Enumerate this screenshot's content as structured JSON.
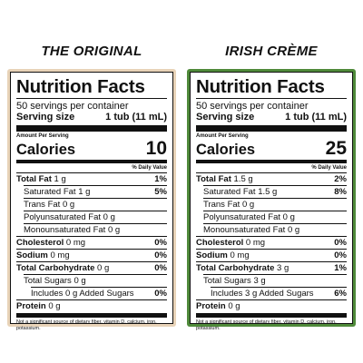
{
  "colors": {
    "left_border": "#e8d3b8",
    "right_border": "#4f8a3a"
  },
  "panels": [
    {
      "heading": "THE ORIGINAL",
      "title": "Nutrition Facts",
      "servings": "50 servings per container",
      "serving_size_label": "Serving size",
      "serving_size_value": "1 tub (11 mL)",
      "amount_per": "Amount Per Serving",
      "calories_label": "Calories",
      "calories_value": "10",
      "dv_header": "% Daily Value",
      "nutrients": [
        {
          "name": "Total Fat",
          "amount": "1 g",
          "pct": "1%",
          "bold": true,
          "indent": 0
        },
        {
          "name": "Saturated Fat",
          "amount": "1 g",
          "pct": "5%",
          "bold": false,
          "indent": 1
        },
        {
          "name": "Trans Fat",
          "amount": "0 g",
          "pct": "",
          "bold": false,
          "indent": 1
        },
        {
          "name": "Polyunsaturated Fat",
          "amount": "0 g",
          "pct": "",
          "bold": false,
          "indent": 1
        },
        {
          "name": "Monounsaturated Fat",
          "amount": "0 g",
          "pct": "",
          "bold": false,
          "indent": 1
        },
        {
          "name": "Cholesterol",
          "amount": "0 mg",
          "pct": "0%",
          "bold": true,
          "indent": 0
        },
        {
          "name": "Sodium",
          "amount": "0 mg",
          "pct": "0%",
          "bold": true,
          "indent": 0
        },
        {
          "name": "Total Carbohydrate",
          "amount": "0 g",
          "pct": "0%",
          "bold": true,
          "indent": 0
        },
        {
          "name": "Total Sugars",
          "amount": "0 g",
          "pct": "",
          "bold": false,
          "indent": 1
        },
        {
          "name": "Includes 0 g Added Sugars",
          "amount": "",
          "pct": "0%",
          "bold": false,
          "indent": 2
        },
        {
          "name": "Protein",
          "amount": "0 g",
          "pct": "",
          "bold": true,
          "indent": 0
        }
      ],
      "footnote": "Not a significant source of dietary fiber, vitamin D, calcium, iron, potassium."
    },
    {
      "heading": "IRISH CRÈME",
      "title": "Nutrition Facts",
      "servings": "50 servings per container",
      "serving_size_label": "Serving size",
      "serving_size_value": "1 tub (11 mL)",
      "amount_per": "Amount Per Serving",
      "calories_label": "Calories",
      "calories_value": "25",
      "dv_header": "% Daily Value",
      "nutrients": [
        {
          "name": "Total Fat",
          "amount": "1.5 g",
          "pct": "2%",
          "bold": true,
          "indent": 0
        },
        {
          "name": "Saturated Fat",
          "amount": "1.5 g",
          "pct": "8%",
          "bold": false,
          "indent": 1
        },
        {
          "name": "Trans Fat",
          "amount": "0 g",
          "pct": "",
          "bold": false,
          "indent": 1
        },
        {
          "name": "Polyunsaturated Fat",
          "amount": "0 g",
          "pct": "",
          "bold": false,
          "indent": 1
        },
        {
          "name": "Monounsaturated Fat",
          "amount": "0 g",
          "pct": "",
          "bold": false,
          "indent": 1
        },
        {
          "name": "Cholesterol",
          "amount": "0 mg",
          "pct": "0%",
          "bold": true,
          "indent": 0
        },
        {
          "name": "Sodium",
          "amount": "0 mg",
          "pct": "0%",
          "bold": true,
          "indent": 0
        },
        {
          "name": "Total Carbohydrate",
          "amount": "3 g",
          "pct": "1%",
          "bold": true,
          "indent": 0
        },
        {
          "name": "Total Sugars",
          "amount": "3 g",
          "pct": "",
          "bold": false,
          "indent": 1
        },
        {
          "name": "Includes 3 g Added Sugars",
          "amount": "",
          "pct": "6%",
          "bold": false,
          "indent": 2
        },
        {
          "name": "Protein",
          "amount": "0 g",
          "pct": "",
          "bold": true,
          "indent": 0
        }
      ],
      "footnote": "Not a significant source of dietary fiber, vitamin D, calcium, iron, potassium."
    }
  ]
}
